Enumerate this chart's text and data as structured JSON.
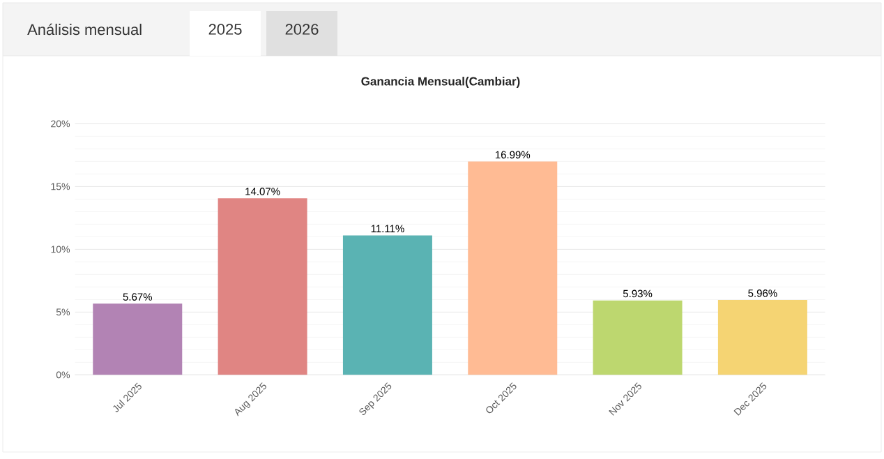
{
  "chart_data": {
    "type": "bar",
    "title": "Ganancia Mensual(Cambiar)",
    "annotations": [
      "Análisis mensual",
      "2025",
      "2026"
    ],
    "categories": [
      "Jul 2025",
      "Aug 2025",
      "Sep 2025",
      "Oct 2025",
      "Nov 2025",
      "Dec 2025"
    ],
    "values": [
      5.67,
      14.07,
      11.11,
      16.99,
      5.93,
      5.96
    ],
    "value_labels": [
      "5.67%",
      "14.07%",
      "11.11%",
      "16.99%",
      "5.93%",
      "5.96%"
    ],
    "colors": [
      "#b283b4",
      "#e08583",
      "#5ab3b3",
      "#ffbb94",
      "#bdd76f",
      "#f5d473"
    ],
    "ylim": [
      0,
      20
    ],
    "yticks": [
      {
        "value": 0,
        "label": "0%"
      },
      {
        "value": 5,
        "label": "5%"
      },
      {
        "value": 10,
        "label": "10%"
      },
      {
        "value": 15,
        "label": "15%"
      },
      {
        "value": 20,
        "label": "20%"
      }
    ],
    "grid": "y"
  }
}
